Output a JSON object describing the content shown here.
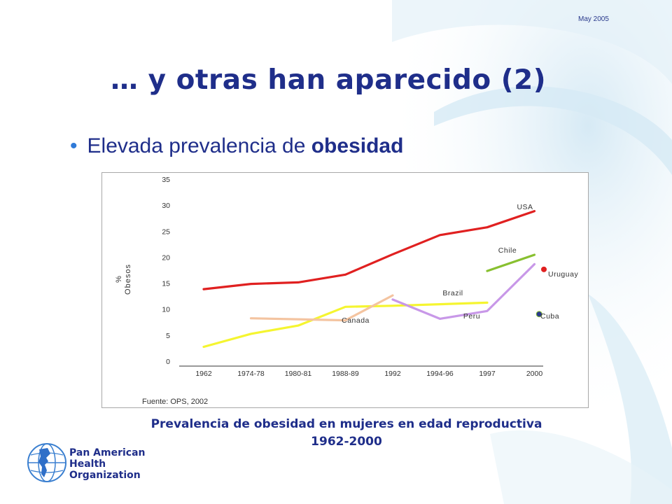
{
  "slide": {
    "date": "May 2005",
    "title": "… y otras han aparecido (2)",
    "bullet_text": "Elevada prevalencia de ",
    "bullet_bold": "obesidad",
    "caption_line1": "Prevalencia de obesidad en mujeres en edad reproductiva",
    "caption_line2": "1962-2000"
  },
  "organization": {
    "line1": "Pan American",
    "line2": "Health",
    "line3": "Organization"
  },
  "chart_data": {
    "type": "line",
    "ylabel_line1": "%",
    "ylabel_line2": "Obesos",
    "source": "Fuente: OPS, 2002",
    "categories": [
      "1962",
      "1974-78",
      "1980-81",
      "1988-89",
      "1992",
      "1994-96",
      "1997",
      "2000"
    ],
    "y_ticks": [
      0,
      5,
      10,
      15,
      20,
      25,
      30,
      35
    ],
    "ylim": [
      0,
      35
    ],
    "grid": false,
    "series": [
      {
        "name": "USA",
        "color": "#e02020",
        "points": [
          [
            0,
            14.8
          ],
          [
            1,
            15.8
          ],
          [
            2,
            16.1
          ],
          [
            3,
            17.6
          ],
          [
            4,
            21.5
          ],
          [
            5,
            25.2
          ],
          [
            6,
            26.7
          ],
          [
            7,
            29.8
          ]
        ]
      },
      {
        "name": "Brazil",
        "color": "#f5f530",
        "points": [
          [
            0,
            3.7
          ],
          [
            1,
            6.2
          ],
          [
            2,
            7.8
          ],
          [
            3,
            11.4
          ],
          [
            4,
            11.6
          ],
          [
            5,
            11.9
          ],
          [
            6,
            12.2
          ]
        ]
      },
      {
        "name": "Canada",
        "color": "#f4c4a0",
        "points": [
          [
            1,
            9.2
          ],
          [
            2,
            9.0
          ],
          [
            3,
            8.8
          ],
          [
            4,
            13.6
          ]
        ]
      },
      {
        "name": "Peru",
        "color": "#c898e8",
        "points": [
          [
            4,
            12.8
          ],
          [
            5,
            9.1
          ],
          [
            6,
            10.6
          ],
          [
            7,
            19.6
          ]
        ]
      },
      {
        "name": "Chile",
        "color": "#88c030",
        "points": [
          [
            6,
            18.3
          ],
          [
            7,
            21.4
          ]
        ]
      },
      {
        "name": "Uruguay",
        "color": "#e02020",
        "marker": true,
        "points": [
          [
            7.2,
            18.6
          ]
        ]
      },
      {
        "name": "Cuba",
        "color": "#2a3a8c",
        "marker": true,
        "points": [
          [
            7.1,
            10.0
          ]
        ]
      }
    ]
  }
}
